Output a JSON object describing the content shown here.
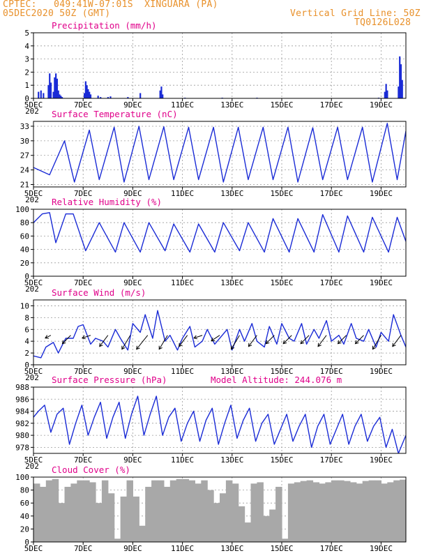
{
  "header": {
    "station_line": "CPTEC:   049:41W-07:01S  XINGUARA (PA)",
    "date_line": "05DEC2020 50Z (GMT)",
    "grid_line_note": "Vertical Grid Line: 50Z",
    "code": "TQ0126L028"
  },
  "colors": {
    "header": "#e8902a",
    "title": "#e0008a",
    "series": "#1a2bd6",
    "cloud": "#a8a8a8",
    "arrow": "#000000"
  },
  "x_axis": {
    "range": [
      0,
      15
    ],
    "ticks": [
      {
        "x": 0,
        "label": "5DEC"
      },
      {
        "x": 2,
        "label": "7DEC"
      },
      {
        "x": 4,
        "label": "9DEC"
      },
      {
        "x": 6,
        "label": "11DEC"
      },
      {
        "x": 8,
        "label": "13DEC"
      },
      {
        "x": 10,
        "label": "15DEC"
      },
      {
        "x": 12,
        "label": "17DEC"
      },
      {
        "x": 14,
        "label": "19DEC"
      }
    ],
    "minor_label": "202"
  },
  "chart_data": [
    {
      "type": "bar",
      "title": "Precipitation (mm/h)",
      "ylim": [
        0,
        5
      ],
      "yticks": [
        0,
        1,
        2,
        3,
        4,
        5
      ],
      "x": [
        0.2,
        0.3,
        0.4,
        0.6,
        0.65,
        0.7,
        0.8,
        0.85,
        0.9,
        0.95,
        1.0,
        1.05,
        1.1,
        1.15,
        2.05,
        2.1,
        2.15,
        2.2,
        2.25,
        2.3,
        2.6,
        2.7,
        3.0,
        3.1,
        3.8,
        4.3,
        5.1,
        5.15,
        5.2,
        6.1,
        7.6,
        9.0,
        13.9,
        14.15,
        14.2,
        14.25,
        14.7,
        14.75,
        14.8,
        14.85
      ],
      "values": [
        0.5,
        0.6,
        0.4,
        1.0,
        1.9,
        1.2,
        0.5,
        1.6,
        1.9,
        1.5,
        0.6,
        0.3,
        0.2,
        0.1,
        0.4,
        1.3,
        1.0,
        0.7,
        0.5,
        0.3,
        0.2,
        0.1,
        0.1,
        0.15,
        0.1,
        0.4,
        0.6,
        0.9,
        0.3,
        0.05,
        0.05,
        0.05,
        0.05,
        0.5,
        1.1,
        0.6,
        0.9,
        3.2,
        2.6,
        1.4
      ]
    },
    {
      "type": "line",
      "title": "Surface Temperature (nC)",
      "ylim": [
        20.5,
        34
      ],
      "yticks": [
        21,
        24,
        27,
        30,
        33
      ],
      "min_values": [
        24.5,
        21.5,
        22,
        21.5,
        22,
        22,
        22,
        21.5,
        22,
        22,
        21.5,
        22,
        22,
        21.5,
        22
      ],
      "max_values": [
        30,
        32.2,
        32.8,
        33,
        32.9,
        32.8,
        32.8,
        32.8,
        32.8,
        32.8,
        32.8,
        32.7,
        32.8,
        33.6,
        32.4
      ],
      "x": [
        0,
        0.65,
        1.25,
        1.65,
        2.25,
        2.65,
        3.25,
        3.65,
        4.25,
        4.65,
        5.25,
        5.65,
        6.25,
        6.65,
        7.25,
        7.65,
        8.25,
        8.65,
        9.25,
        9.65,
        10.25,
        10.65,
        11.25,
        11.65,
        12.25,
        12.65,
        13.25,
        13.65,
        14.25,
        14.65,
        15
      ],
      "values": [
        24.5,
        23,
        30,
        21.5,
        32.2,
        22,
        32.8,
        21.5,
        33,
        22,
        32.9,
        22,
        32.8,
        22,
        32.8,
        21.5,
        32.8,
        22,
        32.8,
        22,
        32.8,
        21.5,
        32.7,
        22,
        32.8,
        22,
        32.8,
        21.5,
        33.6,
        22,
        32
      ]
    },
    {
      "type": "line",
      "title": "Relative Humidity (%)",
      "ylim": [
        0,
        100
      ],
      "yticks": [
        0,
        20,
        40,
        60,
        80,
        100
      ],
      "x": [
        0,
        0.35,
        0.65,
        0.9,
        1.3,
        1.6,
        2.1,
        2.65,
        3.3,
        3.65,
        4.3,
        4.65,
        5.3,
        5.65,
        6.3,
        6.65,
        7.3,
        7.65,
        8.3,
        8.65,
        9.3,
        9.65,
        10.3,
        10.65,
        11.3,
        11.65,
        12.3,
        12.65,
        13.3,
        13.65,
        14.3,
        14.65,
        15
      ],
      "values": [
        80,
        93,
        95,
        50,
        93,
        93,
        38,
        80,
        36,
        80,
        36,
        80,
        38,
        78,
        36,
        78,
        36,
        80,
        38,
        80,
        36,
        86,
        36,
        86,
        36,
        92,
        36,
        90,
        36,
        88,
        36,
        88,
        52
      ]
    },
    {
      "type": "line",
      "title": "Surface Wind (m/s)",
      "ylim": [
        0,
        11
      ],
      "yticks": [
        0,
        2,
        4,
        6,
        8,
        10
      ],
      "x": [
        0,
        0.3,
        0.5,
        0.8,
        1.0,
        1.3,
        1.6,
        1.8,
        2.0,
        2.3,
        2.5,
        2.8,
        3.0,
        3.3,
        3.5,
        3.8,
        4.0,
        4.3,
        4.5,
        4.8,
        5.0,
        5.3,
        5.5,
        5.8,
        6.0,
        6.3,
        6.5,
        6.8,
        7.0,
        7.3,
        7.5,
        7.8,
        8.0,
        8.3,
        8.5,
        8.8,
        9.0,
        9.3,
        9.5,
        9.8,
        10.0,
        10.3,
        10.5,
        10.8,
        11.0,
        11.3,
        11.5,
        11.8,
        12.0,
        12.3,
        12.5,
        12.8,
        13.0,
        13.3,
        13.5,
        13.8,
        14.0,
        14.3,
        14.5,
        14.8,
        15.0
      ],
      "values": [
        1.5,
        1.2,
        3.0,
        3.8,
        2.0,
        4.5,
        4.5,
        6.5,
        6.8,
        3.5,
        4.5,
        4.0,
        3.0,
        6.0,
        4.5,
        2.5,
        7.0,
        5.5,
        8.5,
        4.5,
        9.2,
        4.0,
        5.0,
        2.5,
        4.5,
        6.5,
        3.0,
        4.0,
        6.0,
        3.5,
        4.5,
        6.0,
        2.5,
        6.0,
        4.0,
        7.0,
        4.0,
        3.0,
        6.5,
        3.5,
        7.0,
        4.5,
        4.0,
        7.0,
        3.5,
        6.0,
        4.5,
        7.5,
        4.0,
        5.0,
        3.5,
        7.0,
        4.5,
        4.0,
        6.0,
        3.0,
        5.5,
        4.0,
        8.5,
        5.0,
        3.0
      ],
      "vectors": [
        {
          "x": 0.7,
          "u": -2,
          "v": -1
        },
        {
          "x": 1.5,
          "u": -3,
          "v": -3
        },
        {
          "x": 2.3,
          "u": -3,
          "v": -1
        },
        {
          "x": 3.0,
          "u": -3,
          "v": -4
        },
        {
          "x": 3.9,
          "u": -3,
          "v": -5
        },
        {
          "x": 4.6,
          "u": -4,
          "v": -5
        },
        {
          "x": 5.4,
          "u": -3,
          "v": -5
        },
        {
          "x": 6.2,
          "u": -3,
          "v": -4
        },
        {
          "x": 6.8,
          "u": -3,
          "v": -1
        },
        {
          "x": 7.5,
          "u": -3,
          "v": -2
        },
        {
          "x": 8.3,
          "u": -3,
          "v": -5
        },
        {
          "x": 9.0,
          "u": -3,
          "v": -4
        },
        {
          "x": 9.7,
          "u": -3,
          "v": -3
        },
        {
          "x": 10.4,
          "u": -3,
          "v": -3
        },
        {
          "x": 11.1,
          "u": -3,
          "v": -3
        },
        {
          "x": 11.8,
          "u": -3,
          "v": -4
        },
        {
          "x": 12.6,
          "u": -3,
          "v": -3
        },
        {
          "x": 13.3,
          "u": -3,
          "v": -3
        },
        {
          "x": 14.0,
          "u": -3,
          "v": -5
        },
        {
          "x": 14.8,
          "u": -3,
          "v": -4
        }
      ]
    },
    {
      "type": "line",
      "title": "Surface Pressure (hPa)",
      "annotation": "Model Altitude: 244.076 m",
      "ylim": [
        977,
        988
      ],
      "yticks": [
        978,
        980,
        982,
        984,
        986,
        988
      ],
      "x": [
        0,
        0.2,
        0.45,
        0.7,
        0.95,
        1.2,
        1.45,
        1.7,
        1.95,
        2.2,
        2.45,
        2.7,
        2.95,
        3.2,
        3.45,
        3.7,
        3.95,
        4.2,
        4.45,
        4.7,
        4.95,
        5.2,
        5.45,
        5.7,
        5.95,
        6.2,
        6.45,
        6.7,
        6.95,
        7.2,
        7.45,
        7.7,
        7.95,
        8.2,
        8.45,
        8.7,
        8.95,
        9.2,
        9.45,
        9.7,
        9.95,
        10.2,
        10.45,
        10.7,
        10.95,
        11.2,
        11.45,
        11.7,
        11.95,
        12.2,
        12.45,
        12.7,
        12.95,
        13.2,
        13.45,
        13.7,
        13.95,
        14.2,
        14.45,
        14.7,
        15.0
      ],
      "values": [
        983,
        984,
        985,
        980.5,
        983.5,
        984.5,
        978.5,
        982,
        985,
        980,
        983,
        985.5,
        979.5,
        983,
        985.5,
        979.5,
        983.5,
        986.5,
        980,
        983.5,
        986.5,
        980,
        983,
        984.5,
        979,
        982,
        984,
        979,
        982.5,
        984.5,
        978.5,
        982,
        985,
        979.5,
        982.5,
        984.5,
        979,
        982,
        983.5,
        978.5,
        981,
        983.5,
        979,
        981.5,
        983.5,
        978,
        981.5,
        983.5,
        978.5,
        981,
        983.5,
        978.5,
        981.5,
        983.5,
        979,
        981.5,
        983,
        978,
        981,
        977,
        980
      ]
    },
    {
      "type": "bar",
      "title": "Cloud Cover (%)",
      "ylim": [
        0,
        100
      ],
      "yticks": [
        0,
        20,
        40,
        60,
        80,
        100
      ],
      "x": [
        0,
        0.25,
        0.5,
        0.75,
        1.0,
        1.25,
        1.5,
        1.75,
        2.0,
        2.25,
        2.5,
        2.75,
        3.0,
        3.25,
        3.5,
        3.75,
        4.0,
        4.25,
        4.5,
        4.75,
        5.0,
        5.25,
        5.5,
        5.75,
        6.0,
        6.25,
        6.5,
        6.75,
        7.0,
        7.25,
        7.5,
        7.75,
        8.0,
        8.25,
        8.5,
        8.75,
        9.0,
        9.25,
        9.5,
        9.75,
        10.0,
        10.25,
        10.5,
        10.75,
        11.0,
        11.25,
        11.5,
        11.75,
        12.0,
        12.25,
        12.5,
        12.75,
        13.0,
        13.25,
        13.5,
        13.75,
        14.0,
        14.25,
        14.5,
        14.75
      ],
      "values": [
        90,
        85,
        95,
        97,
        60,
        85,
        90,
        95,
        95,
        92,
        60,
        95,
        75,
        5,
        70,
        95,
        70,
        25,
        85,
        95,
        95,
        85,
        95,
        97,
        97,
        95,
        90,
        95,
        80,
        60,
        75,
        95,
        90,
        55,
        30,
        90,
        92,
        40,
        50,
        85,
        5,
        90,
        92,
        94,
        95,
        92,
        90,
        92,
        95,
        95,
        94,
        92,
        90,
        94,
        95,
        95,
        90,
        92,
        95,
        96
      ]
    }
  ]
}
